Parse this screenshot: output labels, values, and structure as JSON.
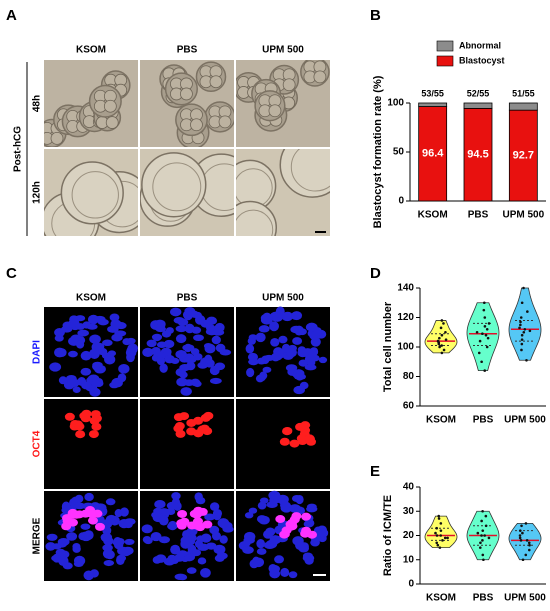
{
  "panel_a": {
    "label": "A",
    "group_label": "Post-hCG",
    "columns": [
      "KSOM",
      "PBS",
      "UPM 500"
    ],
    "rows": [
      "48h",
      "120h"
    ]
  },
  "panel_c": {
    "label": "C",
    "columns": [
      "KSOM",
      "PBS",
      "UPM 500"
    ],
    "rows": [
      "DAPI",
      "OCT4",
      "MERGE"
    ],
    "row_colors": [
      "#1a1aff",
      "#ff1a1a",
      "#000000"
    ]
  },
  "chart_data": [
    {
      "type": "stacked_bar",
      "panel_label": "B",
      "ylabel": "Blastocyst formation rate (%)",
      "categories": [
        "KSOM",
        "PBS",
        "UPM 500"
      ],
      "series": [
        {
          "name": "Blastocyst",
          "color": "#e8110f",
          "values": [
            96.4,
            94.5,
            92.7
          ]
        },
        {
          "name": "Abnormal",
          "color": "#8c8c8c",
          "values": [
            3.6,
            5.5,
            7.3
          ]
        }
      ],
      "top_labels": [
        "53/55",
        "52/55",
        "51/55"
      ],
      "ylim": [
        0,
        100
      ],
      "yticks": [
        0,
        50,
        100
      ]
    },
    {
      "type": "violin",
      "panel_label": "D",
      "ylabel": "Total cell number",
      "categories": [
        "KSOM",
        "PBS",
        "UPM 500"
      ],
      "groups": [
        {
          "color": "#ffff66",
          "values": [
            96,
            98,
            100,
            101,
            102,
            103,
            104,
            104,
            105,
            106,
            108,
            110,
            113,
            116,
            118
          ],
          "median": 104,
          "quartiles": [
            101,
            109
          ]
        },
        {
          "color": "#66ffcc",
          "values": [
            84,
            90,
            96,
            100,
            104,
            106,
            108,
            109,
            110,
            112,
            114,
            116,
            120,
            125,
            130
          ],
          "median": 109,
          "quartiles": [
            101,
            116
          ]
        },
        {
          "color": "#55c8f5",
          "values": [
            91,
            98,
            102,
            105,
            108,
            110,
            111,
            112,
            113,
            115,
            117,
            120,
            124,
            130,
            140
          ],
          "median": 112,
          "quartiles": [
            104,
            118
          ]
        }
      ],
      "ylim": [
        60,
        140
      ],
      "yticks": [
        60,
        80,
        100,
        120,
        140
      ]
    },
    {
      "type": "violin",
      "panel_label": "E",
      "ylabel": "Ratio of ICM/TE",
      "categories": [
        "KSOM",
        "PBS",
        "UPM 500"
      ],
      "groups": [
        {
          "color": "#ffff66",
          "values": [
            15,
            16,
            17,
            18,
            19,
            19,
            20,
            20,
            21,
            22,
            23,
            25,
            27,
            28
          ],
          "median": 20,
          "quartiles": [
            18,
            23
          ]
        },
        {
          "color": "#66ffcc",
          "values": [
            10,
            12,
            15,
            17,
            18,
            19,
            20,
            20,
            21,
            22,
            24,
            26,
            28,
            30
          ],
          "median": 20,
          "quartiles": [
            16,
            24
          ]
        },
        {
          "color": "#55c8f5",
          "values": [
            10,
            12,
            14,
            16,
            17,
            18,
            18,
            19,
            20,
            21,
            22,
            24,
            25
          ],
          "median": 18,
          "quartiles": [
            16,
            22
          ]
        }
      ],
      "ylim": [
        0,
        40
      ],
      "yticks": [
        0,
        10,
        20,
        30,
        40
      ]
    }
  ]
}
